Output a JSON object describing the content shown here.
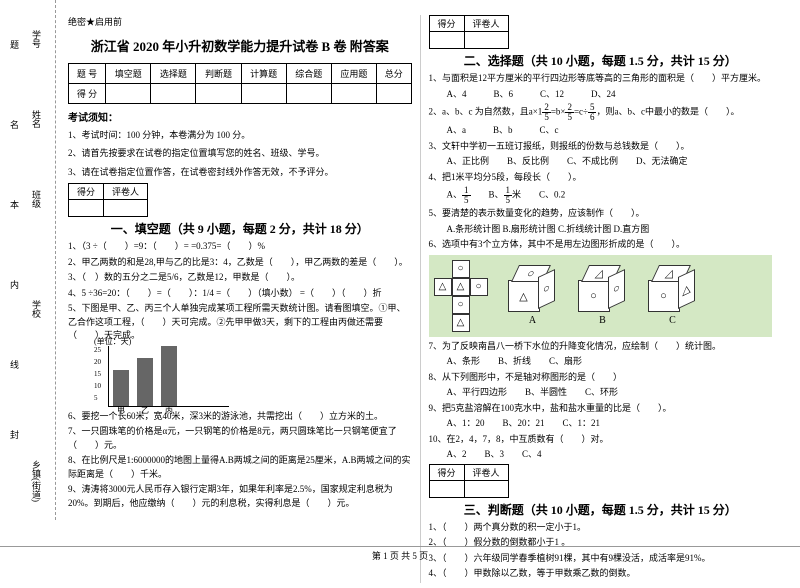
{
  "sidebar": {
    "items": [
      "学号",
      "姓名",
      "班级",
      "学校",
      "乡镇(街道)"
    ],
    "marks": [
      "题",
      "名",
      "本",
      "内",
      "线",
      "封"
    ]
  },
  "secret": "绝密★启用前",
  "title": "浙江省 2020 年小升初数学能力提升试卷 B 卷 附答案",
  "scoreTable": {
    "headers": [
      "题  号",
      "填空题",
      "选择题",
      "判断题",
      "计算题",
      "综合题",
      "应用题",
      "总分"
    ],
    "row2": "得  分"
  },
  "noticeHead": "考试须知：",
  "notices": [
    "1、考试时间：100 分钟，本卷满分为 100 分。",
    "2、请首先按要求在试卷的指定位置填写您的姓名、班级、学号。",
    "3、请在试卷指定位置作答，在试卷密封线外作答无效，不予评分。"
  ],
  "smallTable": {
    "c1": "得分",
    "c2": "评卷人"
  },
  "sec1": {
    "title": "一、填空题（共 9 小题，每题 2 分，共计 18 分）",
    "q": [
      "1、（3 ÷（　　）=9：（　　）= =0.375=（　　）%",
      "2、甲乙两数的和是28,甲与乙的比是3：4，乙数是（　　），甲乙两数的差是（　　）。",
      "3、（　）数的五分之二是5/6，乙数是12，甲数是（　　）。",
      "4、5 ÷36=20：（　　）=（　　）：1/4 =（　　）（填小数） =（　　）（　　）折",
      "5、下图是甲、乙、丙三个人单独完成某项工程所需天数统计图。请看图填空。①甲、乙合作这项工程，（　　）天可完成。②先甲甲做3天，剩下的工程由丙做还需要（　　）天完成。"
    ],
    "chart": {
      "unit": "(单位：天)",
      "ylabels": [
        "25",
        "20",
        "15",
        "10",
        "5"
      ],
      "xlabels": [
        "甲",
        "乙",
        "丙"
      ],
      "values": [
        15,
        20,
        25
      ],
      "max": 25,
      "bar_color": "#666"
    },
    "q2": [
      "6、要挖一个长60米，宽40米，深3米的游泳池，共需挖出（　　）立方米的土。",
      "7、一只圆珠笔的价格是α元，一只钢笔的价格是8元，两只圆珠笔比一只钢笔便宜了（　　）元。",
      "8、在比例尺是1:6000000的地图上量得A.B两城之间的距离是25厘米，A.B两城之间的实际距离是（　　）千米。",
      "9、涛涛将3000元人民币存入银行定期3年，如果年利率是2.5%，国家规定利息税为20%。到期后，他应缴纳（　　）元的利息税，实得利息是（　　）元。"
    ]
  },
  "sec2": {
    "title": "二、选择题（共 10 小题，每题 1.5 分，共计 15 分）",
    "q": [
      "1、与面积是12平方厘米的平行四边形等底等高的三角形的面积是（　　）平方厘米。",
      "　　A、4　　　B、6　　　C、12　　　D、24",
      "2、a、b、c 为自然数，且a×1<span class='frac'><span class='n'>2</span><span class='d'>5</span></span>=b×<span class='frac'><span class='n'>2</span><span class='d'>5</span></span>=c÷<span class='frac'><span class='n'>5</span><span class='d'>6</span></span>，则a、b、c中最小的数是（　　）。",
      "　　A、a　　　B、b　　　C、c",
      "3、文轩中学初一五班订报纸，则报纸的份数与总钱数是（　　）。",
      "　　A、正比例　　B、反比例　　C、不成比例　　D、无法确定",
      "4、把1米平均分5段，每段长（　　）。",
      "　　A、<span class='frac'><span class='n'>1</span><span class='d'>5</span></span>　　B、<span class='frac'><span class='n'>1</span><span class='d'>5</span></span>米　　C、0.2",
      "5、要清楚的表示数量变化的趋势，应该制作（　　）。",
      "　　A.条形统计图 B.扇形统计图 C.折线统计图 D.直方图",
      "6、选项中有3个立方体，其中不是用左边图形折成的是（　　）。"
    ],
    "cubes_bg": "#d4e8c4",
    "cube_labels": [
      "A",
      "B",
      "C"
    ],
    "q2": [
      "7、为了反映南昌八一桥下水位的升降变化情况，应绘制（　　）统计图。",
      "　　A、条形　　B、折线　　C、扇形",
      "8、从下列图形中，不是轴对称图形的是（　　）",
      "　　A、平行四边形　　B、半圆性　　C、环形",
      "9、把5克盐溶解在100克水中，盐和盐水重量的比是（　　）。",
      "　　A、1：20　　B、20：21　　C、1：21",
      "10、在2，4，7，8，中互质数有（　　）对。",
      "　　A、2　　B、3　　C、4"
    ]
  },
  "sec3": {
    "title": "三、判断题（共 10 小题，每题 1.5 分，共计 15 分）",
    "q": [
      "1、（　　）两个真分数的积一定小于1。",
      "2、（　　）假分数的倒数都小于1 。",
      "3、（　　）六年级同学春季植树91棵，其中有9棵没活，成活率是91%。",
      "4、（　　）甲数除以乙数，等于甲数乘乙数的倒数。"
    ]
  },
  "footer": "第 1 页  共 5 页"
}
